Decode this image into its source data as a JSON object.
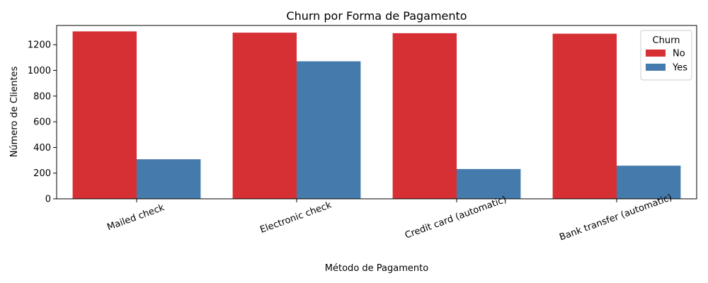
{
  "chart_data": {
    "type": "bar",
    "title": "Churn por Forma de Pagamento",
    "xlabel": "Método de Pagamento",
    "ylabel": "Número de Clientes",
    "categories": [
      "Mailed check",
      "Electronic check",
      "Credit card (automatic)",
      "Bank transfer (automatic)"
    ],
    "series": [
      {
        "name": "No",
        "values": [
          1304,
          1294,
          1290,
          1286
        ],
        "color": "#d62f34"
      },
      {
        "name": "Yes",
        "values": [
          308,
          1071,
          232,
          258
        ],
        "color": "#457bac"
      }
    ],
    "ylim": [
      0,
      1350
    ],
    "yticks": [
      0,
      200,
      400,
      600,
      800,
      1000,
      1200
    ],
    "grid": false,
    "legend": {
      "title": "Churn",
      "placement": "top-right"
    }
  }
}
